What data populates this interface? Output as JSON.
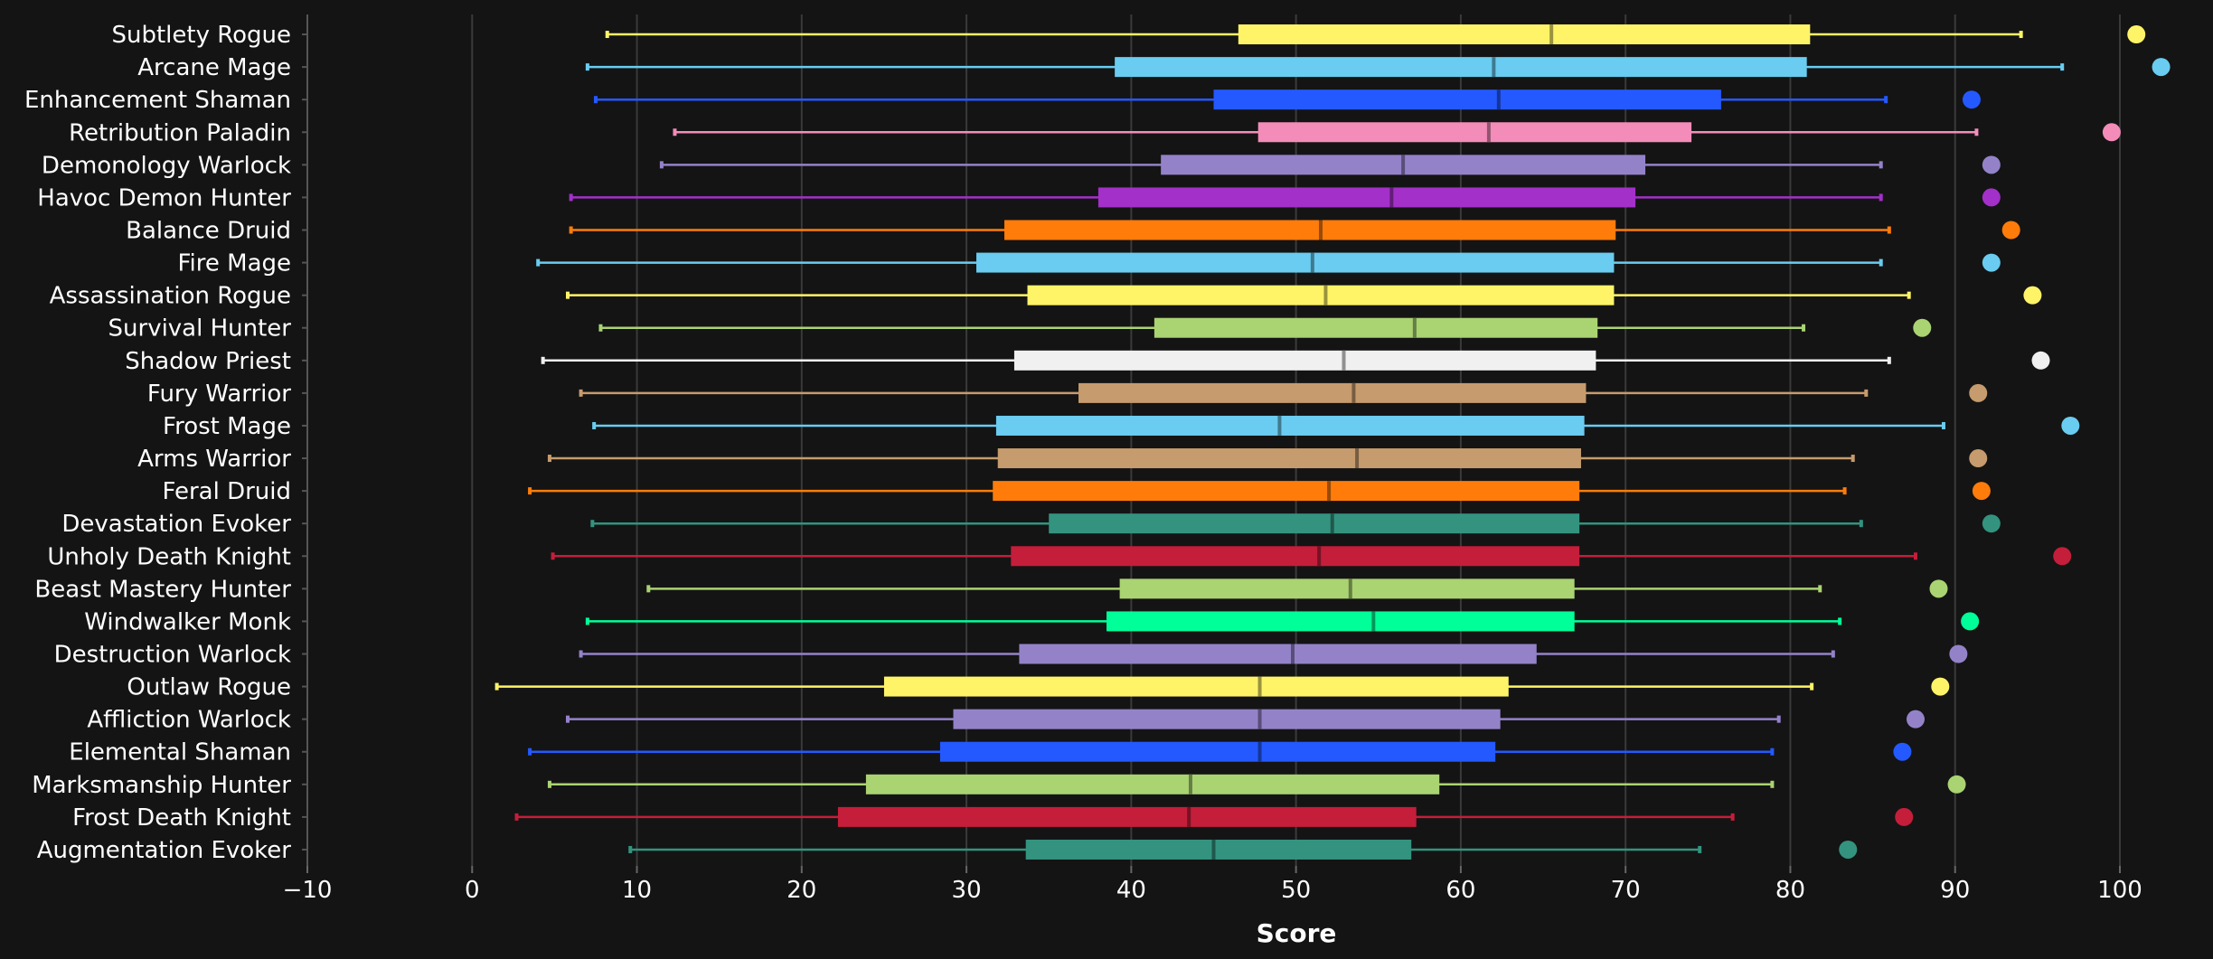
{
  "chart_data": {
    "type": "boxplot",
    "xlabel": "Score",
    "xlim": [
      -10,
      100
    ],
    "x_ticks": [
      -10,
      0,
      10,
      20,
      30,
      40,
      50,
      60,
      70,
      80,
      90,
      100
    ],
    "x_tick_labels": [
      "−10",
      "0",
      "10",
      "20",
      "30",
      "40",
      "50",
      "60",
      "70",
      "80",
      "90",
      "100"
    ],
    "grid": "vertical",
    "legend": "none",
    "series": [
      {
        "name": "Subtlety Rogue",
        "color": "#FFF468",
        "min": 8.2,
        "q1": 46.5,
        "median": 65.5,
        "q3": 81.2,
        "max": 94.0,
        "outlier": 101.0
      },
      {
        "name": "Arcane Mage",
        "color": "#69CCF0",
        "min": 7.0,
        "q1": 39.0,
        "median": 62.0,
        "q3": 81.0,
        "max": 96.5,
        "outlier": 102.5
      },
      {
        "name": "Enhancement Shaman",
        "color": "#2459FF",
        "min": 7.5,
        "q1": 45.0,
        "median": 62.3,
        "q3": 75.8,
        "max": 85.8,
        "outlier": 91.0
      },
      {
        "name": "Retribution Paladin",
        "color": "#F48CBA",
        "min": 12.3,
        "q1": 47.7,
        "median": 61.7,
        "q3": 74.0,
        "max": 91.3,
        "outlier": 99.5
      },
      {
        "name": "Demonology Warlock",
        "color": "#9482C9",
        "min": 11.5,
        "q1": 41.8,
        "median": 56.5,
        "q3": 71.2,
        "max": 85.5,
        "outlier": 92.2
      },
      {
        "name": "Havoc Demon Hunter",
        "color": "#A330C9",
        "min": 6.0,
        "q1": 38.0,
        "median": 55.8,
        "q3": 70.6,
        "max": 85.5,
        "outlier": 92.2
      },
      {
        "name": "Balance Druid",
        "color": "#FF7C0A",
        "min": 6.0,
        "q1": 32.3,
        "median": 51.5,
        "q3": 69.4,
        "max": 86.0,
        "outlier": 93.4
      },
      {
        "name": "Fire Mage",
        "color": "#69CCF0",
        "min": 4.0,
        "q1": 30.6,
        "median": 51.0,
        "q3": 69.3,
        "max": 85.5,
        "outlier": 92.2
      },
      {
        "name": "Assassination Rogue",
        "color": "#FFF468",
        "min": 5.8,
        "q1": 33.7,
        "median": 51.8,
        "q3": 69.3,
        "max": 87.2,
        "outlier": 94.7
      },
      {
        "name": "Survival Hunter",
        "color": "#AAD372",
        "min": 7.8,
        "q1": 41.4,
        "median": 57.2,
        "q3": 68.3,
        "max": 80.8,
        "outlier": 88.0
      },
      {
        "name": "Shadow Priest",
        "color": "#F0F0F0",
        "min": 4.3,
        "q1": 32.9,
        "median": 52.9,
        "q3": 68.2,
        "max": 86.0,
        "outlier": 95.2
      },
      {
        "name": "Fury Warrior",
        "color": "#C69B6D",
        "min": 6.6,
        "q1": 36.8,
        "median": 53.5,
        "q3": 67.6,
        "max": 84.6,
        "outlier": 91.4
      },
      {
        "name": "Frost Mage",
        "color": "#69CCF0",
        "min": 7.4,
        "q1": 31.8,
        "median": 49.0,
        "q3": 67.5,
        "max": 89.3,
        "outlier": 97.0
      },
      {
        "name": "Arms Warrior",
        "color": "#C69B6D",
        "min": 4.7,
        "q1": 31.9,
        "median": 53.7,
        "q3": 67.3,
        "max": 83.8,
        "outlier": 91.4
      },
      {
        "name": "Feral Druid",
        "color": "#FF7C0A",
        "min": 3.5,
        "q1": 31.6,
        "median": 52.0,
        "q3": 67.2,
        "max": 83.3,
        "outlier": 91.6
      },
      {
        "name": "Devastation Evoker",
        "color": "#33937F",
        "min": 7.3,
        "q1": 35.0,
        "median": 52.2,
        "q3": 67.2,
        "max": 84.3,
        "outlier": 92.2
      },
      {
        "name": "Unholy Death Knight",
        "color": "#C41E3A",
        "min": 4.9,
        "q1": 32.7,
        "median": 51.4,
        "q3": 67.2,
        "max": 87.6,
        "outlier": 96.5
      },
      {
        "name": "Beast Mastery Hunter",
        "color": "#AAD372",
        "min": 10.7,
        "q1": 39.3,
        "median": 53.3,
        "q3": 66.9,
        "max": 81.8,
        "outlier": 89.0
      },
      {
        "name": "Windwalker Monk",
        "color": "#00FF98",
        "min": 7.0,
        "q1": 38.5,
        "median": 54.7,
        "q3": 66.9,
        "max": 83.0,
        "outlier": 90.9
      },
      {
        "name": "Destruction Warlock",
        "color": "#9482C9",
        "min": 6.6,
        "q1": 33.2,
        "median": 49.8,
        "q3": 64.6,
        "max": 82.6,
        "outlier": 90.2
      },
      {
        "name": "Outlaw Rogue",
        "color": "#FFF468",
        "min": 1.5,
        "q1": 25.0,
        "median": 47.8,
        "q3": 62.9,
        "max": 81.3,
        "outlier": 89.1
      },
      {
        "name": "Affliction Warlock",
        "color": "#9482C9",
        "min": 5.8,
        "q1": 29.2,
        "median": 47.8,
        "q3": 62.4,
        "max": 79.3,
        "outlier": 87.6
      },
      {
        "name": "Elemental Shaman",
        "color": "#2459FF",
        "min": 3.5,
        "q1": 28.4,
        "median": 47.8,
        "q3": 62.1,
        "max": 78.9,
        "outlier": 86.8
      },
      {
        "name": "Marksmanship Hunter",
        "color": "#AAD372",
        "min": 4.7,
        "q1": 23.9,
        "median": 43.6,
        "q3": 58.7,
        "max": 78.9,
        "outlier": 90.1
      },
      {
        "name": "Frost Death Knight",
        "color": "#C41E3A",
        "min": 2.7,
        "q1": 22.2,
        "median": 43.5,
        "q3": 57.3,
        "max": 76.5,
        "outlier": 86.9
      },
      {
        "name": "Augmentation Evoker",
        "color": "#33937F",
        "min": 9.6,
        "q1": 33.6,
        "median": 45.0,
        "q3": 57.0,
        "max": 74.5,
        "outlier": 83.5
      }
    ]
  }
}
